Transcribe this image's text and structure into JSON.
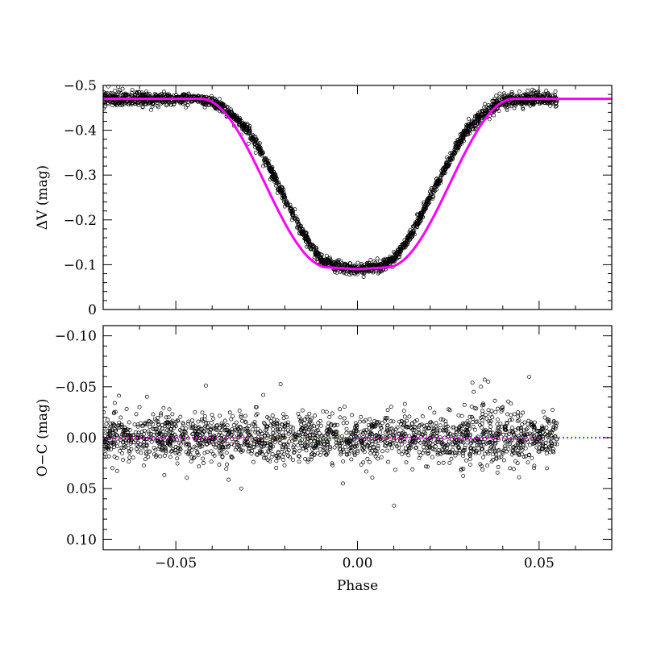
{
  "chart_data": [
    {
      "type": "scatter",
      "panel": "top",
      "xlabel": "",
      "ylabel": "ΔV (mag)",
      "xlim": [
        -0.07,
        0.07
      ],
      "ylim": [
        0,
        -0.5
      ],
      "y_inverted": true,
      "x_ticks": [
        -0.05,
        0.0,
        0.05
      ],
      "y_ticks": [
        -0.5,
        -0.4,
        -0.3,
        -0.2,
        -0.1,
        0
      ],
      "y_tick_labels": [
        "−0.5",
        "−0.4",
        "−0.3",
        "−0.2",
        "−0.1",
        "0"
      ],
      "point_color": "#000000",
      "fit_color": "#ff00ff",
      "series": [
        {
          "kind": "observations",
          "x": [
            -0.07,
            -0.066,
            -0.062,
            -0.058,
            -0.054,
            -0.05,
            -0.046,
            -0.042,
            -0.04,
            -0.038,
            -0.036,
            -0.034,
            -0.032,
            -0.03,
            -0.028,
            -0.026,
            -0.024,
            -0.022,
            -0.02,
            -0.018,
            -0.016,
            -0.014,
            -0.012,
            -0.01,
            -0.008,
            -0.006,
            -0.004,
            -0.002,
            0.0,
            0.002,
            0.004,
            0.006,
            0.008,
            0.01,
            0.012,
            0.014,
            0.016,
            0.018,
            0.02,
            0.022,
            0.024,
            0.026,
            0.028,
            0.03,
            0.032,
            0.034,
            0.036,
            0.038,
            0.04,
            0.042,
            0.046,
            0.05,
            0.054
          ],
          "y": [
            -0.47,
            -0.48,
            -0.49,
            -0.47,
            -0.46,
            -0.47,
            -0.47,
            -0.47,
            -0.46,
            -0.45,
            -0.43,
            -0.41,
            -0.39,
            -0.37,
            -0.35,
            -0.32,
            -0.29,
            -0.26,
            -0.23,
            -0.2,
            -0.17,
            -0.14,
            -0.11,
            -0.1,
            -0.1,
            -0.09,
            -0.09,
            -0.09,
            -0.09,
            -0.09,
            -0.1,
            -0.1,
            -0.1,
            -0.11,
            -0.13,
            -0.16,
            -0.19,
            -0.22,
            -0.25,
            -0.28,
            -0.31,
            -0.34,
            -0.37,
            -0.39,
            -0.41,
            -0.43,
            -0.45,
            -0.46,
            -0.47,
            -0.47,
            -0.47,
            -0.47,
            -0.47
          ]
        },
        {
          "kind": "model-fit",
          "x": [
            -0.07,
            -0.045,
            -0.04,
            -0.035,
            -0.03,
            -0.025,
            -0.02,
            -0.015,
            -0.01,
            -0.005,
            0.0,
            0.005,
            0.01,
            0.015,
            0.02,
            0.025,
            0.03,
            0.035,
            0.04,
            0.045,
            0.07
          ],
          "y": [
            -0.47,
            -0.47,
            -0.465,
            -0.44,
            -0.4,
            -0.33,
            -0.25,
            -0.17,
            -0.11,
            -0.095,
            -0.09,
            -0.095,
            -0.11,
            -0.17,
            -0.25,
            -0.33,
            -0.4,
            -0.44,
            -0.465,
            -0.47,
            -0.47
          ]
        }
      ]
    },
    {
      "type": "scatter",
      "panel": "bottom",
      "xlabel": "Phase",
      "ylabel": "O−C (mag)",
      "xlim": [
        -0.07,
        0.07
      ],
      "ylim": [
        0.11,
        -0.11
      ],
      "y_inverted": true,
      "x_ticks": [
        -0.05,
        0.0,
        0.05
      ],
      "x_tick_labels": [
        "−0.05",
        "0.00",
        "0.05"
      ],
      "y_ticks": [
        -0.1,
        -0.05,
        0.0,
        0.05,
        0.1
      ],
      "y_tick_labels": [
        "−0.10",
        "−0.05",
        "0.00",
        "0.05",
        "0.10"
      ],
      "point_color": "#000000",
      "zero_line_color": "#ff00ff",
      "zero_line_style": "dotted",
      "series": [
        {
          "kind": "residuals",
          "x": [
            -0.068,
            -0.064,
            -0.06,
            -0.056,
            -0.052,
            -0.048,
            -0.044,
            -0.04,
            -0.036,
            -0.032,
            -0.028,
            -0.024,
            -0.02,
            -0.016,
            -0.012,
            -0.008,
            -0.004,
            0.0,
            0.004,
            0.008,
            0.012,
            0.016,
            0.02,
            0.024,
            0.028,
            0.032,
            0.034,
            0.035,
            0.036,
            0.038,
            0.04,
            0.042,
            0.044,
            0.046,
            0.048,
            0.05,
            0.052,
            0.054
          ],
          "y": [
            0.005,
            -0.01,
            -0.03,
            0.01,
            -0.02,
            0.0,
            0.005,
            -0.01,
            0.0,
            0.05,
            -0.03,
            0.01,
            0.0,
            -0.02,
            0.01,
            0.0,
            0.045,
            0.0,
            -0.01,
            0.005,
            0.0,
            0.01,
            -0.015,
            0.0,
            0.01,
            -0.045,
            -0.05,
            -0.057,
            -0.055,
            -0.025,
            -0.03,
            0.03,
            0.0,
            -0.015,
            0.02,
            0.01,
            -0.01,
            0.0
          ]
        },
        {
          "kind": "zero-line",
          "x": [
            -0.07,
            0.07
          ],
          "y": [
            0,
            0
          ]
        }
      ]
    }
  ]
}
